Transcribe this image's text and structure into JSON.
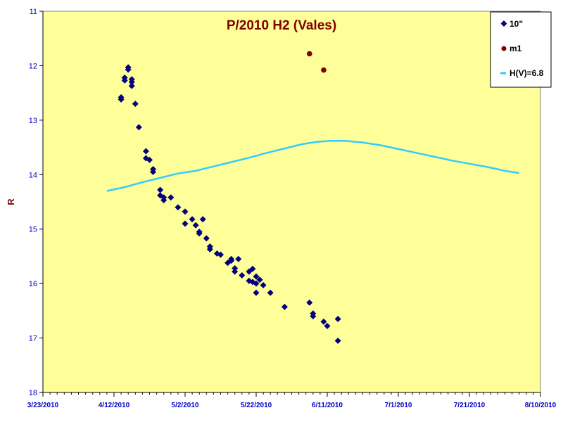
{
  "chart_data": {
    "type": "scatter",
    "title": "P/2010 H2 (Vales)",
    "xlabel": "",
    "ylabel": "R",
    "xlim": [
      "2010-03-23",
      "2010-08-10"
    ],
    "ylim": [
      11,
      18
    ],
    "y_inverted": true,
    "x_tick_labels": [
      "3/23/2010",
      "4/12/2010",
      "5/2/2010",
      "5/22/2010",
      "6/11/2010",
      "7/1/2010",
      "7/21/2010",
      "8/10/2010"
    ],
    "y_tick_labels": [
      "11",
      "12",
      "13",
      "14",
      "15",
      "16",
      "17",
      "18"
    ],
    "legend_position": "top-right",
    "plot_background": "#ffff99",
    "series": [
      {
        "name": "10\"",
        "marker": "diamond",
        "color": "#000080",
        "points": [
          [
            "2010-04-14",
            12.58
          ],
          [
            "2010-04-14",
            12.62
          ],
          [
            "2010-04-15",
            12.22
          ],
          [
            "2010-04-15",
            12.27
          ],
          [
            "2010-04-16",
            12.03
          ],
          [
            "2010-04-16",
            12.07
          ],
          [
            "2010-04-17",
            12.25
          ],
          [
            "2010-04-17",
            12.3
          ],
          [
            "2010-04-17",
            12.37
          ],
          [
            "2010-04-18",
            12.7
          ],
          [
            "2010-04-19",
            13.13
          ],
          [
            "2010-04-21",
            13.57
          ],
          [
            "2010-04-21",
            13.7
          ],
          [
            "2010-04-22",
            13.73
          ],
          [
            "2010-04-23",
            13.9
          ],
          [
            "2010-04-23",
            13.95
          ],
          [
            "2010-04-25",
            14.28
          ],
          [
            "2010-04-25",
            14.38
          ],
          [
            "2010-04-26",
            14.42
          ],
          [
            "2010-04-26",
            14.47
          ],
          [
            "2010-04-28",
            14.42
          ],
          [
            "2010-04-30",
            14.6
          ],
          [
            "2010-05-02",
            14.68
          ],
          [
            "2010-05-02",
            14.9
          ],
          [
            "2010-05-04",
            14.82
          ],
          [
            "2010-05-05",
            14.93
          ],
          [
            "2010-05-06",
            15.05
          ],
          [
            "2010-05-06",
            15.08
          ],
          [
            "2010-05-07",
            14.82
          ],
          [
            "2010-05-08",
            15.17
          ],
          [
            "2010-05-09",
            15.32
          ],
          [
            "2010-05-09",
            15.37
          ],
          [
            "2010-05-11",
            15.45
          ],
          [
            "2010-05-12",
            15.47
          ],
          [
            "2010-05-14",
            15.62
          ],
          [
            "2010-05-15",
            15.55
          ],
          [
            "2010-05-15",
            15.58
          ],
          [
            "2010-05-16",
            15.72
          ],
          [
            "2010-05-16",
            15.78
          ],
          [
            "2010-05-17",
            15.55
          ],
          [
            "2010-05-18",
            15.85
          ],
          [
            "2010-05-20",
            15.78
          ],
          [
            "2010-05-20",
            15.95
          ],
          [
            "2010-05-21",
            15.73
          ],
          [
            "2010-05-21",
            15.97
          ],
          [
            "2010-05-22",
            15.87
          ],
          [
            "2010-05-22",
            16.0
          ],
          [
            "2010-05-22",
            16.17
          ],
          [
            "2010-05-23",
            15.93
          ],
          [
            "2010-05-24",
            16.03
          ],
          [
            "2010-05-26",
            16.17
          ],
          [
            "2010-05-30",
            16.43
          ],
          [
            "2010-06-06",
            16.35
          ],
          [
            "2010-06-07",
            16.55
          ],
          [
            "2010-06-07",
            16.6
          ],
          [
            "2010-06-10",
            16.7
          ],
          [
            "2010-06-11",
            16.78
          ],
          [
            "2010-06-14",
            16.65
          ],
          [
            "2010-06-14",
            17.05
          ]
        ]
      },
      {
        "name": "m1",
        "marker": "circle",
        "color": "#800000",
        "points": [
          [
            "2010-06-06",
            11.78
          ],
          [
            "2010-06-10",
            12.08
          ]
        ]
      },
      {
        "name": "H(V)=6.8",
        "marker": "line",
        "color": "#33ccff",
        "points": [
          [
            "2010-04-10",
            14.3
          ],
          [
            "2010-04-15",
            14.23
          ],
          [
            "2010-04-20",
            14.14
          ],
          [
            "2010-04-25",
            14.06
          ],
          [
            "2010-04-30",
            13.98
          ],
          [
            "2010-05-05",
            13.93
          ],
          [
            "2010-05-10",
            13.85
          ],
          [
            "2010-05-15",
            13.77
          ],
          [
            "2010-05-20",
            13.69
          ],
          [
            "2010-05-25",
            13.6
          ],
          [
            "2010-05-30",
            13.52
          ],
          [
            "2010-06-04",
            13.44
          ],
          [
            "2010-06-08",
            13.4
          ],
          [
            "2010-06-12",
            13.38
          ],
          [
            "2010-06-16",
            13.38
          ],
          [
            "2010-06-21",
            13.41
          ],
          [
            "2010-06-26",
            13.46
          ],
          [
            "2010-07-01",
            13.53
          ],
          [
            "2010-07-06",
            13.6
          ],
          [
            "2010-07-11",
            13.67
          ],
          [
            "2010-07-16",
            13.74
          ],
          [
            "2010-07-21",
            13.8
          ],
          [
            "2010-07-26",
            13.86
          ],
          [
            "2010-07-31",
            13.93
          ],
          [
            "2010-08-04",
            13.97
          ]
        ]
      }
    ]
  }
}
